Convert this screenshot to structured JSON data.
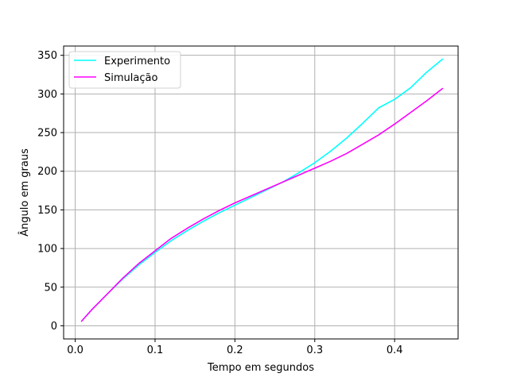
{
  "chart_data": {
    "type": "line",
    "title": "",
    "xlabel": "Tempo em segundos",
    "ylabel": "Ângulo em graus",
    "xlim": [
      -0.0145,
      0.4795
    ],
    "ylim": [
      -17,
      362
    ],
    "x_ticks": [
      0.0,
      0.1,
      0.2,
      0.3,
      0.4
    ],
    "x_tick_labels": [
      "0.0",
      "0.1",
      "0.2",
      "0.3",
      "0.4"
    ],
    "y_ticks": [
      0,
      50,
      100,
      150,
      200,
      250,
      300,
      350
    ],
    "y_tick_labels": [
      "0",
      "50",
      "100",
      "150",
      "200",
      "250",
      "300",
      "350"
    ],
    "grid": true,
    "legend": "top-left",
    "series": [
      {
        "name": "Experimento",
        "color": "#00ffff",
        "x": [
          0.008,
          0.02,
          0.04,
          0.06,
          0.08,
          0.1,
          0.12,
          0.14,
          0.16,
          0.18,
          0.2,
          0.22,
          0.24,
          0.26,
          0.28,
          0.3,
          0.32,
          0.34,
          0.36,
          0.38,
          0.4,
          0.42,
          0.44,
          0.46
        ],
        "y": [
          6,
          20,
          41,
          61,
          79,
          95,
          110,
          123,
          135,
          146,
          156,
          166,
          176,
          186,
          198,
          211,
          226,
          243,
          262,
          282,
          293,
          308,
          328,
          345
        ]
      },
      {
        "name": "Simulação",
        "color": "#ff00ff",
        "x": [
          0.008,
          0.02,
          0.04,
          0.06,
          0.08,
          0.1,
          0.12,
          0.14,
          0.16,
          0.18,
          0.2,
          0.22,
          0.24,
          0.26,
          0.28,
          0.3,
          0.32,
          0.34,
          0.36,
          0.38,
          0.4,
          0.42,
          0.44,
          0.46
        ],
        "y": [
          6,
          20,
          41,
          62,
          81,
          97,
          113,
          126,
          138,
          149,
          159,
          168,
          177,
          186,
          195,
          204,
          213,
          223,
          235,
          247,
          261,
          276,
          291,
          307
        ]
      }
    ]
  }
}
